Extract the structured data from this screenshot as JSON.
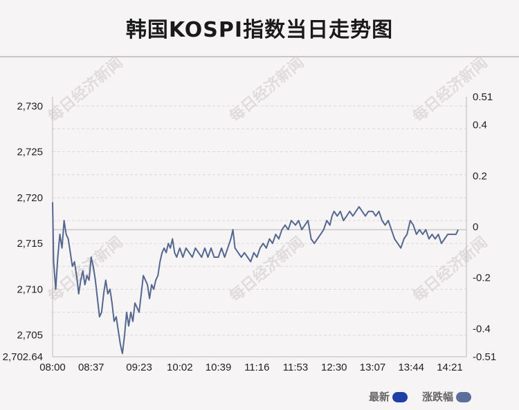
{
  "watermark": "每日经济新闻",
  "chart_data": {
    "type": "line",
    "title": "韩国KOSPI指数当日走势图",
    "left_axis": {
      "ticks": [
        2730,
        2725,
        2720,
        2715,
        2710,
        2705,
        2702.64
      ],
      "tick_labels": [
        "2,730",
        "2,725",
        "2,720",
        "2,715",
        "2,710",
        "2,705",
        "2,702.64"
      ],
      "range": [
        2702.64,
        2731.0
      ]
    },
    "right_axis": {
      "ticks": [
        0.51,
        0.4,
        0.2,
        0,
        -0.2,
        -0.4,
        -0.51
      ],
      "tick_labels": [
        "0.51",
        "0.4",
        "0.2",
        "0",
        "-0.2",
        "-0.4",
        "-0.51"
      ]
    },
    "x_ticks": [
      "08:00",
      "08:37",
      "09:23",
      "10:02",
      "10:39",
      "11:16",
      "11:53",
      "12:30",
      "13:07",
      "13:44",
      "14:21"
    ],
    "reference_value": 2716.5,
    "grid": true,
    "legend": [
      {
        "label": "最新",
        "color": "#1e3fa8"
      },
      {
        "label": "涨跌幅",
        "color": "#5b6e9c"
      }
    ],
    "series": [
      {
        "name": "最新",
        "color": "#53678f",
        "points": [
          [
            "08:00",
            2719.5
          ],
          [
            "08:01",
            2713.0
          ],
          [
            "08:03",
            2710.0
          ],
          [
            "08:05",
            2713.5
          ],
          [
            "08:07",
            2716.0
          ],
          [
            "08:09",
            2714.5
          ],
          [
            "08:11",
            2717.5
          ],
          [
            "08:13",
            2716.0
          ],
          [
            "08:15",
            2715.5
          ],
          [
            "08:17",
            2714.0
          ],
          [
            "08:19",
            2712.5
          ],
          [
            "08:21",
            2713.0
          ],
          [
            "08:23",
            2711.5
          ],
          [
            "08:25",
            2709.5
          ],
          [
            "08:27",
            2711.0
          ],
          [
            "08:29",
            2712.0
          ],
          [
            "08:31",
            2710.5
          ],
          [
            "08:33",
            2711.5
          ],
          [
            "08:35",
            2711.0
          ],
          [
            "08:37",
            2713.5
          ],
          [
            "08:39",
            2712.5
          ],
          [
            "08:41",
            2711.0
          ],
          [
            "08:43",
            2709.0
          ],
          [
            "08:45",
            2707.0
          ],
          [
            "08:47",
            2707.5
          ],
          [
            "08:49",
            2709.5
          ],
          [
            "08:51",
            2711.0
          ],
          [
            "08:53",
            2709.5
          ],
          [
            "08:55",
            2710.0
          ],
          [
            "08:57",
            2708.5
          ],
          [
            "08:59",
            2706.5
          ],
          [
            "09:01",
            2707.0
          ],
          [
            "09:03",
            2705.5
          ],
          [
            "09:05",
            2704.0
          ],
          [
            "09:07",
            2703.0
          ],
          [
            "09:09",
            2705.0
          ],
          [
            "09:11",
            2707.5
          ],
          [
            "09:13",
            2706.0
          ],
          [
            "09:15",
            2707.5
          ],
          [
            "09:17",
            2706.5
          ],
          [
            "09:19",
            2708.5
          ],
          [
            "09:21",
            2708.0
          ],
          [
            "09:23",
            2707.5
          ],
          [
            "09:25",
            2709.5
          ],
          [
            "09:27",
            2711.5
          ],
          [
            "09:29",
            2711.0
          ],
          [
            "09:31",
            2710.5
          ],
          [
            "09:33",
            2709.0
          ],
          [
            "09:35",
            2710.5
          ],
          [
            "09:37",
            2710.0
          ],
          [
            "09:39",
            2711.0
          ],
          [
            "09:41",
            2711.5
          ],
          [
            "09:43",
            2713.0
          ],
          [
            "09:45",
            2714.0
          ],
          [
            "09:47",
            2714.5
          ],
          [
            "09:49",
            2714.0
          ],
          [
            "09:51",
            2715.0
          ],
          [
            "09:53",
            2714.5
          ],
          [
            "09:55",
            2715.5
          ],
          [
            "09:57",
            2714.0
          ],
          [
            "09:59",
            2713.5
          ],
          [
            "10:02",
            2714.5
          ],
          [
            "10:05",
            2713.5
          ],
          [
            "10:08",
            2714.5
          ],
          [
            "10:11",
            2714.0
          ],
          [
            "10:14",
            2713.5
          ],
          [
            "10:17",
            2714.5
          ],
          [
            "10:20",
            2714.0
          ],
          [
            "10:23",
            2713.5
          ],
          [
            "10:26",
            2714.5
          ],
          [
            "10:29",
            2713.5
          ],
          [
            "10:32",
            2714.5
          ],
          [
            "10:35",
            2713.5
          ],
          [
            "10:39",
            2713.5
          ],
          [
            "10:42",
            2714.5
          ],
          [
            "10:45",
            2713.5
          ],
          [
            "10:48",
            2714.5
          ],
          [
            "10:51",
            2715.5
          ],
          [
            "10:53",
            2716.5
          ],
          [
            "10:55",
            2714.5
          ],
          [
            "10:58",
            2714.0
          ],
          [
            "11:01",
            2713.5
          ],
          [
            "11:04",
            2714.0
          ],
          [
            "11:07",
            2713.5
          ],
          [
            "11:10",
            2713.0
          ],
          [
            "11:13",
            2714.0
          ],
          [
            "11:16",
            2713.5
          ],
          [
            "11:19",
            2714.5
          ],
          [
            "11:22",
            2715.0
          ],
          [
            "11:25",
            2714.5
          ],
          [
            "11:28",
            2715.5
          ],
          [
            "11:31",
            2715.0
          ],
          [
            "11:34",
            2716.0
          ],
          [
            "11:37",
            2715.5
          ],
          [
            "11:40",
            2716.5
          ],
          [
            "11:43",
            2717.0
          ],
          [
            "11:46",
            2716.5
          ],
          [
            "11:49",
            2717.5
          ],
          [
            "11:53",
            2717.0
          ],
          [
            "11:56",
            2717.5
          ],
          [
            "11:59",
            2716.5
          ],
          [
            "12:02",
            2717.0
          ],
          [
            "12:05",
            2717.5
          ],
          [
            "12:08",
            2715.5
          ],
          [
            "12:11",
            2715.0
          ],
          [
            "12:14",
            2715.5
          ],
          [
            "12:17",
            2716.0
          ],
          [
            "12:20",
            2716.5
          ],
          [
            "12:23",
            2717.5
          ],
          [
            "12:26",
            2717.0
          ],
          [
            "12:28",
            2718.0
          ],
          [
            "12:30",
            2718.5
          ],
          [
            "12:33",
            2718.0
          ],
          [
            "12:36",
            2718.5
          ],
          [
            "12:39",
            2717.5
          ],
          [
            "12:42",
            2718.0
          ],
          [
            "12:45",
            2718.5
          ],
          [
            "12:48",
            2718.0
          ],
          [
            "12:51",
            2718.5
          ],
          [
            "12:54",
            2719.0
          ],
          [
            "12:57",
            2718.5
          ],
          [
            "13:00",
            2718.0
          ],
          [
            "13:03",
            2718.5
          ],
          [
            "13:07",
            2718.5
          ],
          [
            "13:10",
            2718.0
          ],
          [
            "13:13",
            2718.5
          ],
          [
            "13:16",
            2717.5
          ],
          [
            "13:19",
            2717.0
          ],
          [
            "13:22",
            2717.5
          ],
          [
            "13:25",
            2716.5
          ],
          [
            "13:28",
            2715.5
          ],
          [
            "13:31",
            2715.0
          ],
          [
            "13:34",
            2714.5
          ],
          [
            "13:37",
            2715.5
          ],
          [
            "13:40",
            2716.0
          ],
          [
            "13:43",
            2717.5
          ],
          [
            "13:46",
            2717.0
          ],
          [
            "13:49",
            2716.0
          ],
          [
            "13:52",
            2716.5
          ],
          [
            "13:55",
            2716.0
          ],
          [
            "13:58",
            2716.5
          ],
          [
            "14:01",
            2715.5
          ],
          [
            "14:04",
            2716.0
          ],
          [
            "14:07",
            2715.5
          ],
          [
            "14:10",
            2716.0
          ],
          [
            "14:13",
            2715.0
          ],
          [
            "14:16",
            2715.5
          ],
          [
            "14:19",
            2716.0
          ],
          [
            "14:21",
            2716.0
          ],
          [
            "14:24",
            2716.0
          ],
          [
            "14:27",
            2716.0
          ],
          [
            "14:29",
            2716.5
          ]
        ]
      }
    ]
  }
}
